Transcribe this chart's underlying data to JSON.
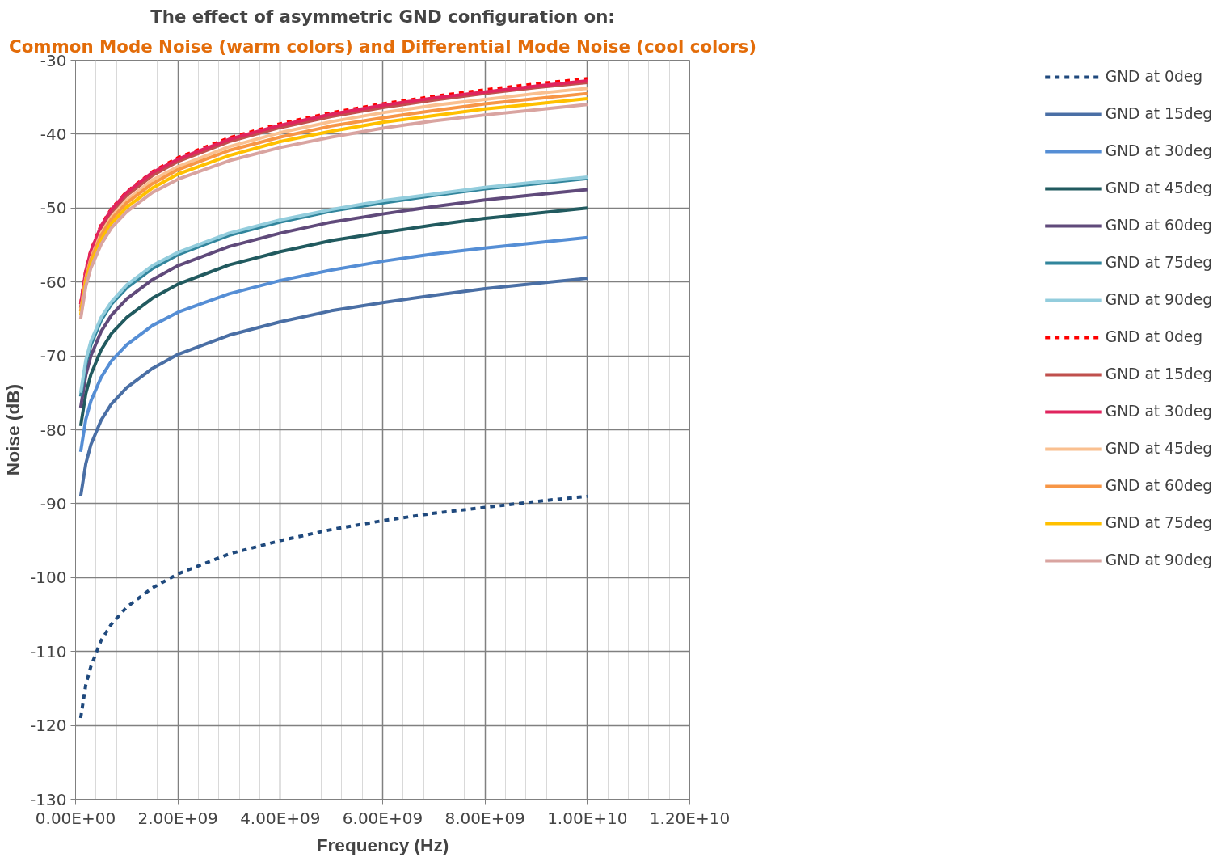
{
  "chart_data": {
    "type": "line",
    "title": "The effect of asymmetric GND configuration on:",
    "subtitle": "Common Mode Noise (warm colors) and Differential Mode Noise (cool colors)",
    "xlabel": "Frequency (Hz)",
    "ylabel": "Noise (dB)",
    "x": [
      100000000.0,
      200000000.0,
      300000000.0,
      500000000.0,
      700000000.0,
      1000000000.0,
      1500000000.0,
      2000000000.0,
      3000000000.0,
      4000000000.0,
      5000000000.0,
      6000000000.0,
      7000000000.0,
      8000000000.0,
      9000000000.0,
      10000000000.0
    ],
    "xlim": [
      0,
      12000000000.0
    ],
    "ylim": [
      -130,
      -30
    ],
    "xticks": [
      {
        "value": 0,
        "label": "0.00E+00"
      },
      {
        "value": 2000000000.0,
        "label": "2.00E+09"
      },
      {
        "value": 4000000000.0,
        "label": "4.00E+09"
      },
      {
        "value": 6000000000.0,
        "label": "6.00E+09"
      },
      {
        "value": 8000000000.0,
        "label": "8.00E+09"
      },
      {
        "value": 10000000000.0,
        "label": "1.00E+10"
      },
      {
        "value": 12000000000.0,
        "label": "1.20E+10"
      }
    ],
    "yticks": [
      -30,
      -40,
      -50,
      -60,
      -70,
      -80,
      -90,
      -100,
      -110,
      -120,
      -130
    ],
    "grid": true,
    "legend": "right",
    "marker": "none",
    "series": [
      {
        "name": "GND at 0deg",
        "color": "#1f497d",
        "line_style": "dashed",
        "values": [
          -119,
          -114.5,
          -112,
          -108.5,
          -106.3,
          -104,
          -101.4,
          -99.5,
          -96.8,
          -95,
          -93.5,
          -92.3,
          -91.3,
          -90.5,
          -89.7,
          -89
        ]
      },
      {
        "name": "GND at 15deg",
        "color": "#4a6fa5",
        "values": [
          -89,
          -84.6,
          -82,
          -78.7,
          -76.5,
          -74.3,
          -71.7,
          -69.8,
          -67.2,
          -65.4,
          -63.9,
          -62.8,
          -61.8,
          -60.9,
          -60.2,
          -59.5
        ]
      },
      {
        "name": "GND at 30deg",
        "color": "#558ed5",
        "values": [
          -83,
          -78.6,
          -76.1,
          -72.9,
          -70.7,
          -68.5,
          -65.9,
          -64.1,
          -61.6,
          -59.8,
          -58.4,
          -57.2,
          -56.2,
          -55.4,
          -54.7,
          -54
        ]
      },
      {
        "name": "GND at 45deg",
        "color": "#215a5f",
        "values": [
          -79.5,
          -75.1,
          -72.5,
          -69.2,
          -67,
          -64.8,
          -62.2,
          -60.3,
          -57.7,
          -55.9,
          -54.4,
          -53.3,
          -52.3,
          -51.4,
          -50.7,
          -50
        ]
      },
      {
        "name": "GND at 60deg",
        "color": "#604a7b",
        "values": [
          -77,
          -72.6,
          -70,
          -66.7,
          -64.5,
          -62.3,
          -59.7,
          -57.8,
          -55.2,
          -53.4,
          -51.9,
          -50.8,
          -49.8,
          -48.9,
          -48.2,
          -47.5
        ]
      },
      {
        "name": "GND at 75deg",
        "color": "#31859c",
        "values": [
          -75.5,
          -71.1,
          -68.5,
          -65.2,
          -63,
          -60.8,
          -58.2,
          -56.3,
          -53.7,
          -51.9,
          -50.4,
          -49.3,
          -48.3,
          -47.4,
          -46.7,
          -46
        ]
      },
      {
        "name": "GND at 90deg",
        "color": "#93cddd",
        "values": [
          -75,
          -70.6,
          -68,
          -64.8,
          -62.7,
          -60.4,
          -57.8,
          -56,
          -53.4,
          -51.6,
          -50.2,
          -49,
          -48.1,
          -47.2,
          -46.5,
          -45.8
        ]
      },
      {
        "name": "GND at 0deg",
        "color": "#ff0000",
        "line_style": "dashed",
        "values": [
          -63,
          -58.4,
          -55.7,
          -52.3,
          -50.1,
          -47.8,
          -45.1,
          -43.2,
          -40.5,
          -38.6,
          -37.1,
          -35.9,
          -34.9,
          -34,
          -33.2,
          -32.5
        ]
      },
      {
        "name": "GND at 15deg",
        "color": "#c0504d",
        "values": [
          -63.5,
          -58.9,
          -56.2,
          -52.8,
          -50.6,
          -48.3,
          -45.6,
          -43.7,
          -41,
          -39.1,
          -37.6,
          -36.4,
          -35.4,
          -34.5,
          -33.7,
          -33
        ]
      },
      {
        "name": "GND at 30deg",
        "color": "#e0245e",
        "values": [
          -63,
          -58.5,
          -55.8,
          -52.4,
          -50.2,
          -47.9,
          -45.2,
          -43.4,
          -40.7,
          -38.8,
          -37.3,
          -36.1,
          -35.1,
          -34.3,
          -33.5,
          -32.8
        ]
      },
      {
        "name": "GND at 45deg",
        "color": "#fac090",
        "values": [
          -64,
          -59.5,
          -56.8,
          -53.4,
          -51.2,
          -48.9,
          -46.2,
          -44.4,
          -41.7,
          -39.8,
          -38.3,
          -37.1,
          -36.1,
          -35.3,
          -34.5,
          -33.8
        ]
      },
      {
        "name": "GND at 60deg",
        "color": "#f79646",
        "values": [
          -64,
          -59.6,
          -57,
          -53.7,
          -51.5,
          -49.3,
          -46.7,
          -44.8,
          -42.2,
          -40.4,
          -38.9,
          -37.8,
          -36.8,
          -35.9,
          -35.2,
          -34.5
        ]
      },
      {
        "name": "GND at 75deg",
        "color": "#ffc000",
        "values": [
          -64.5,
          -60.1,
          -57.5,
          -54.3,
          -52.1,
          -49.9,
          -47.3,
          -45.4,
          -42.9,
          -41,
          -39.6,
          -38.4,
          -37.5,
          -36.6,
          -35.9,
          -35.2
        ]
      },
      {
        "name": "GND at 90deg",
        "color": "#d9a4a0",
        "values": [
          -65,
          -60.6,
          -58.1,
          -54.9,
          -52.7,
          -50.5,
          -47.9,
          -46.1,
          -43.6,
          -41.8,
          -40.4,
          -39.2,
          -38.2,
          -37.4,
          -36.7,
          -36
        ]
      }
    ]
  }
}
